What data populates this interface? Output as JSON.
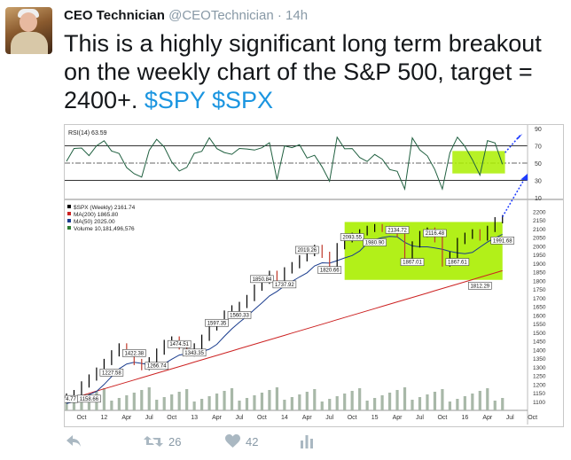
{
  "tweet": {
    "author_name": "CEO Technician",
    "author_handle": "@CEOTechnician",
    "separator": "·",
    "timestamp": "14h",
    "text": "This is a highly significant long term breakout on the weekly chart of the S&P 500, target = 2400+.",
    "cashtags": [
      "$SPY",
      "$SPX"
    ]
  },
  "actions": {
    "retweet_count": "26",
    "like_count": "42",
    "icons": [
      "reply-icon",
      "retweet-icon",
      "like-icon",
      "analytics-icon"
    ]
  },
  "colors": {
    "accent": "#1b95e0",
    "highlight_box": "#aaee00",
    "price_up": "#000000",
    "price_down": "#c0392b",
    "ma200": "#cc2222",
    "ma50": "#1a3c8e",
    "volume": "#a8b8a8"
  },
  "chart_data": {
    "type": "line",
    "rsi_panel": {
      "label": "RSI(14) 63.59",
      "ticks": [
        90,
        70,
        50,
        30,
        10
      ],
      "ylim": [
        10,
        90
      ]
    },
    "price_panel": {
      "legend": [
        "$SPX (Weekly) 2161.74",
        "MA(200) 1865.80",
        "MA(50) 2025.00",
        "Volume 10,181,496,576"
      ],
      "ylim": [
        1050,
        2250
      ],
      "y_ticks": [
        2200,
        2150,
        2100,
        2050,
        2000,
        1950,
        1900,
        1850,
        1800,
        1750,
        1700,
        1650,
        1600,
        1550,
        1500,
        1450,
        1400,
        1350,
        1300,
        1250,
        1200,
        1150,
        1100
      ],
      "x_ticks": [
        "Oct",
        "12",
        "Apr",
        "Jul",
        "Oct",
        "13",
        "Apr",
        "Jul",
        "Oct",
        "14",
        "Apr",
        "Jul",
        "Oct",
        "15",
        "Apr",
        "Jul",
        "Oct",
        "16",
        "Apr",
        "Jul",
        "Oct"
      ],
      "annotations": [
        "1074.77",
        "1158.66",
        "1227.58",
        "1422.38",
        "1266.74",
        "1474.51",
        "1343.35",
        "1597.35",
        "1560.33",
        "1850.84",
        "1737.92",
        "2019.26",
        "1820.66",
        "2093.55",
        "1980.90",
        "2134.72",
        "1867.01",
        "2116.48",
        "1867.61",
        "1812.29",
        "1991.68"
      ],
      "series_close": [
        [
          0,
          1130
        ],
        [
          3,
          1150
        ],
        [
          6,
          1200
        ],
        [
          9,
          1240
        ],
        [
          12,
          1280
        ],
        [
          15,
          1330
        ],
        [
          18,
          1380
        ],
        [
          21,
          1420
        ],
        [
          24,
          1380
        ],
        [
          27,
          1330
        ],
        [
          30,
          1300
        ],
        [
          33,
          1340
        ],
        [
          36,
          1390
        ],
        [
          39,
          1440
        ],
        [
          42,
          1460
        ],
        [
          45,
          1420
        ],
        [
          48,
          1380
        ],
        [
          51,
          1420
        ],
        [
          54,
          1470
        ],
        [
          57,
          1530
        ],
        [
          60,
          1560
        ],
        [
          63,
          1610
        ],
        [
          66,
          1640
        ],
        [
          69,
          1660
        ],
        [
          72,
          1700
        ],
        [
          75,
          1760
        ],
        [
          78,
          1800
        ],
        [
          81,
          1840
        ],
        [
          84,
          1790
        ],
        [
          87,
          1860
        ],
        [
          90,
          1890
        ],
        [
          93,
          1930
        ],
        [
          96,
          1960
        ],
        [
          99,
          1990
        ],
        [
          102,
          1950
        ],
        [
          105,
          1880
        ],
        [
          108,
          2000
        ],
        [
          111,
          2040
        ],
        [
          114,
          2060
        ],
        [
          117,
          2080
        ],
        [
          120,
          2100
        ],
        [
          123,
          2110
        ],
        [
          126,
          2100
        ],
        [
          129,
          2090
        ],
        [
          132,
          2070
        ],
        [
          135,
          1940
        ],
        [
          138,
          2010
        ],
        [
          141,
          2070
        ],
        [
          144,
          2090
        ],
        [
          147,
          2040
        ],
        [
          150,
          1900
        ],
        [
          153,
          1950
        ],
        [
          156,
          2030
        ],
        [
          159,
          2060
        ],
        [
          162,
          2080
        ],
        [
          165,
          2050
        ],
        [
          168,
          2100
        ],
        [
          171,
          2150
        ],
        [
          174,
          2162
        ]
      ]
    }
  }
}
